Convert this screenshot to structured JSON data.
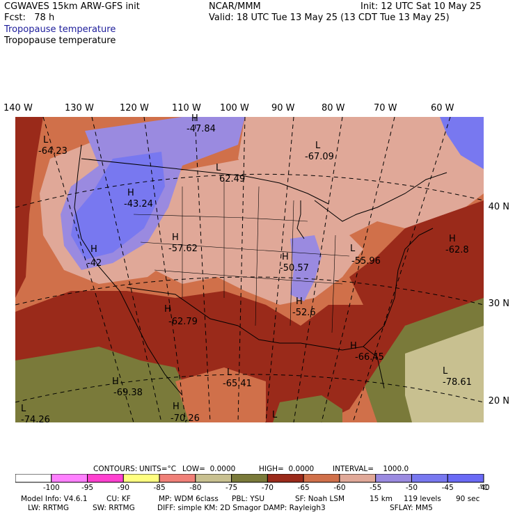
{
  "header": {
    "model": "CGWAVES 15km ARW-GFS init",
    "org": "NCAR/MMM",
    "init": "Init: 12 UTC Sat 10 May 25",
    "fcst": "Fcst:   78 h",
    "valid": "Valid: 18 UTC Tue 13 May 25 (13 CDT Tue 13 May 25)",
    "field1": "Tropopause temperature",
    "field2": "Tropopause temperature"
  },
  "axes": {
    "lon_labels": [
      "140 W",
      "130 W",
      "120 W",
      "110 W",
      "100 W",
      "90 W",
      "80 W",
      "70 W",
      "60 W"
    ],
    "lat_labels": [
      "40 N",
      "30 N",
      "20 N"
    ]
  },
  "extrema": [
    {
      "type": "H",
      "value": "-47.84"
    },
    {
      "type": "L",
      "value": "-64.23"
    },
    {
      "type": "L",
      "value": "-67.09"
    },
    {
      "type": "L",
      "value": "62.49"
    },
    {
      "type": "H",
      "value": "-43.24"
    },
    {
      "type": "H",
      "value": "-57.62"
    },
    {
      "type": "H",
      "value": "-42"
    },
    {
      "type": "H",
      "value": "-50.57"
    },
    {
      "type": "L",
      "value": "-55.96"
    },
    {
      "type": "H",
      "value": "-62.8"
    },
    {
      "type": "H",
      "value": "-62.79"
    },
    {
      "type": "H",
      "value": "-52.6"
    },
    {
      "type": "H",
      "value": "-66.45"
    },
    {
      "type": "H",
      "value": "-69.38"
    },
    {
      "type": "L",
      "value": "-65.41"
    },
    {
      "type": "L",
      "value": "-78.61"
    },
    {
      "type": "H",
      "value": "-70.26"
    },
    {
      "type": "L",
      "value": "-74.26"
    },
    {
      "type": "L",
      "value": ""
    }
  ],
  "contours": {
    "label": "CONTOURS:",
    "units": "UNITS=°C",
    "low": "LOW=  0.0000",
    "high": "HIGH=  0.0000",
    "interval": "INTERVAL=    1000.0"
  },
  "colorbar": {
    "colors": [
      "#ffffff",
      "#ff80ff",
      "#ff40d0",
      "#ffff80",
      "#f08078",
      "#c8c090",
      "#7a7a3a",
      "#9a2a1a",
      "#d0704a",
      "#e0a898",
      "#9a8ae0",
      "#7878f0",
      "#6a6af5"
    ],
    "ticks": [
      "-100",
      "-95",
      "-90",
      "-85",
      "-80",
      "-75",
      "-70",
      "-65",
      "-60",
      "-55",
      "-50",
      "-45",
      "-40"
    ],
    "unit": "°C"
  },
  "footer": {
    "line1": [
      "Model Info: V4.6.1",
      "CU: KF",
      "MP: WDM 6class",
      "PBL: YSU",
      "SF: Noah LSM",
      "15 km",
      "119 levels",
      "90 sec"
    ],
    "line2": [
      "LW: RRTMG",
      "SW: RRTMG",
      "DIFF: simple KM: 2D Smagor DAMP: Rayleigh3",
      "SFLAY: MM5"
    ]
  }
}
